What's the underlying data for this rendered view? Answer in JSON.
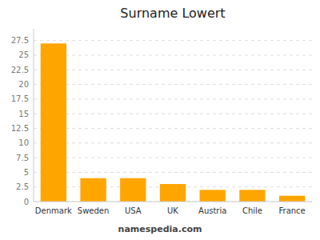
{
  "chart_data": {
    "type": "bar",
    "title": "Surname Lowert",
    "categories": [
      "Denmark",
      "Sweden",
      "USA",
      "UK",
      "Austria",
      "Chile",
      "France"
    ],
    "values": [
      27.0,
      4.0,
      4.0,
      3.0,
      2.0,
      2.0,
      1.0
    ],
    "color": "#FFA500",
    "ylim": [
      0,
      29.5
    ],
    "yticks": [
      0,
      2.5,
      5,
      7.5,
      10,
      12.5,
      15,
      17.5,
      20,
      22.5,
      25,
      27.5
    ],
    "grid": true,
    "annotations": [
      "namespedia.com"
    ]
  }
}
